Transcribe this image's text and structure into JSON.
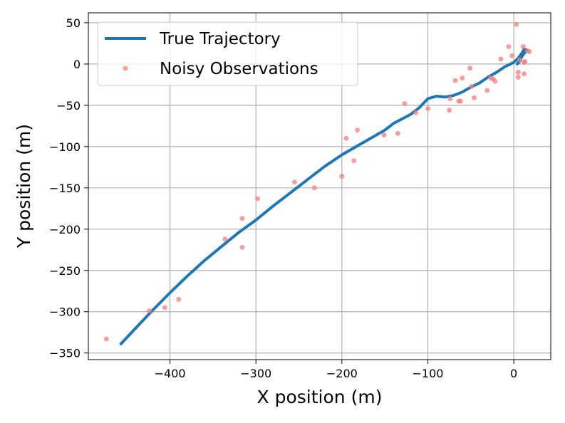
{
  "chart_data": {
    "type": "line",
    "title": "",
    "xlabel": "X position (m)",
    "ylabel": "Y position (m)",
    "xlim": [
      -495,
      43
    ],
    "ylim": [
      -358,
      62
    ],
    "x_ticks": [
      -400,
      -300,
      -200,
      -100,
      0
    ],
    "y_ticks": [
      50,
      0,
      -50,
      -100,
      -150,
      -200,
      -250,
      -300,
      -350
    ],
    "x_tick_labels": [
      "−400",
      "−300",
      "−200",
      "−100",
      "0"
    ],
    "y_tick_labels": [
      "50",
      "0",
      "−50",
      "−100",
      "−150",
      "−200",
      "−250",
      "−300",
      "−350"
    ],
    "grid": true,
    "legend_position": "top-left",
    "series": [
      {
        "name": "True Trajectory",
        "kind": "line",
        "color": "#1f77b4",
        "points": [
          [
            -458,
            -340
          ],
          [
            -440,
            -320
          ],
          [
            -420,
            -298
          ],
          [
            -400,
            -277
          ],
          [
            -380,
            -257
          ],
          [
            -360,
            -238
          ],
          [
            -340,
            -221
          ],
          [
            -320,
            -204
          ],
          [
            -300,
            -189
          ],
          [
            -280,
            -172
          ],
          [
            -260,
            -156
          ],
          [
            -240,
            -140
          ],
          [
            -220,
            -124
          ],
          [
            -200,
            -110
          ],
          [
            -180,
            -98
          ],
          [
            -160,
            -86
          ],
          [
            -150,
            -80
          ],
          [
            -140,
            -72
          ],
          [
            -120,
            -61
          ],
          [
            -110,
            -53
          ],
          [
            -100,
            -42
          ],
          [
            -90,
            -39
          ],
          [
            -80,
            -40
          ],
          [
            -70,
            -38
          ],
          [
            -60,
            -34
          ],
          [
            -50,
            -28
          ],
          [
            -40,
            -23
          ],
          [
            -30,
            -16
          ],
          [
            -20,
            -10
          ],
          [
            -10,
            -3
          ],
          [
            0,
            2
          ],
          [
            5,
            7
          ],
          [
            10,
            14
          ],
          [
            12,
            18
          ],
          [
            15,
            17
          ],
          [
            13,
            14
          ],
          [
            10,
            10
          ],
          [
            8,
            6
          ],
          [
            6,
            2
          ],
          [
            4,
            0
          ],
          [
            6,
            3
          ],
          [
            10,
            10
          ],
          [
            13,
            16
          ]
        ]
      },
      {
        "name": "Noisy Observations",
        "kind": "scatter",
        "color": "#f08080",
        "points": [
          [
            -474,
            -333
          ],
          [
            -424,
            -299
          ],
          [
            -406,
            -295
          ],
          [
            -390,
            -285
          ],
          [
            -336,
            -212
          ],
          [
            -316,
            -187
          ],
          [
            -316,
            -222
          ],
          [
            -298,
            -163
          ],
          [
            -255,
            -143
          ],
          [
            -232,
            -150
          ],
          [
            -200,
            -136
          ],
          [
            -195,
            -90
          ],
          [
            -186,
            -117
          ],
          [
            -182,
            -80
          ],
          [
            -151,
            -86
          ],
          [
            -135,
            -84
          ],
          [
            -127,
            -48
          ],
          [
            -114,
            -59
          ],
          [
            -100,
            -54
          ],
          [
            -75,
            -56
          ],
          [
            -74,
            -42
          ],
          [
            -68,
            -20
          ],
          [
            -64,
            -45
          ],
          [
            -62,
            -45
          ],
          [
            -60,
            -17
          ],
          [
            -51,
            -5
          ],
          [
            -49,
            -27
          ],
          [
            -46,
            -41
          ],
          [
            -31,
            -32
          ],
          [
            -27,
            -17
          ],
          [
            -24,
            -18
          ],
          [
            -22,
            -21
          ],
          [
            -15,
            6
          ],
          [
            -6,
            21
          ],
          [
            -2,
            10
          ],
          [
            3,
            48
          ],
          [
            5,
            -10
          ],
          [
            5,
            -16
          ],
          [
            7,
            5
          ],
          [
            11,
            21
          ],
          [
            12,
            2
          ],
          [
            13,
            3
          ],
          [
            12,
            -12
          ],
          [
            16,
            16
          ],
          [
            18,
            15
          ]
        ]
      }
    ]
  }
}
